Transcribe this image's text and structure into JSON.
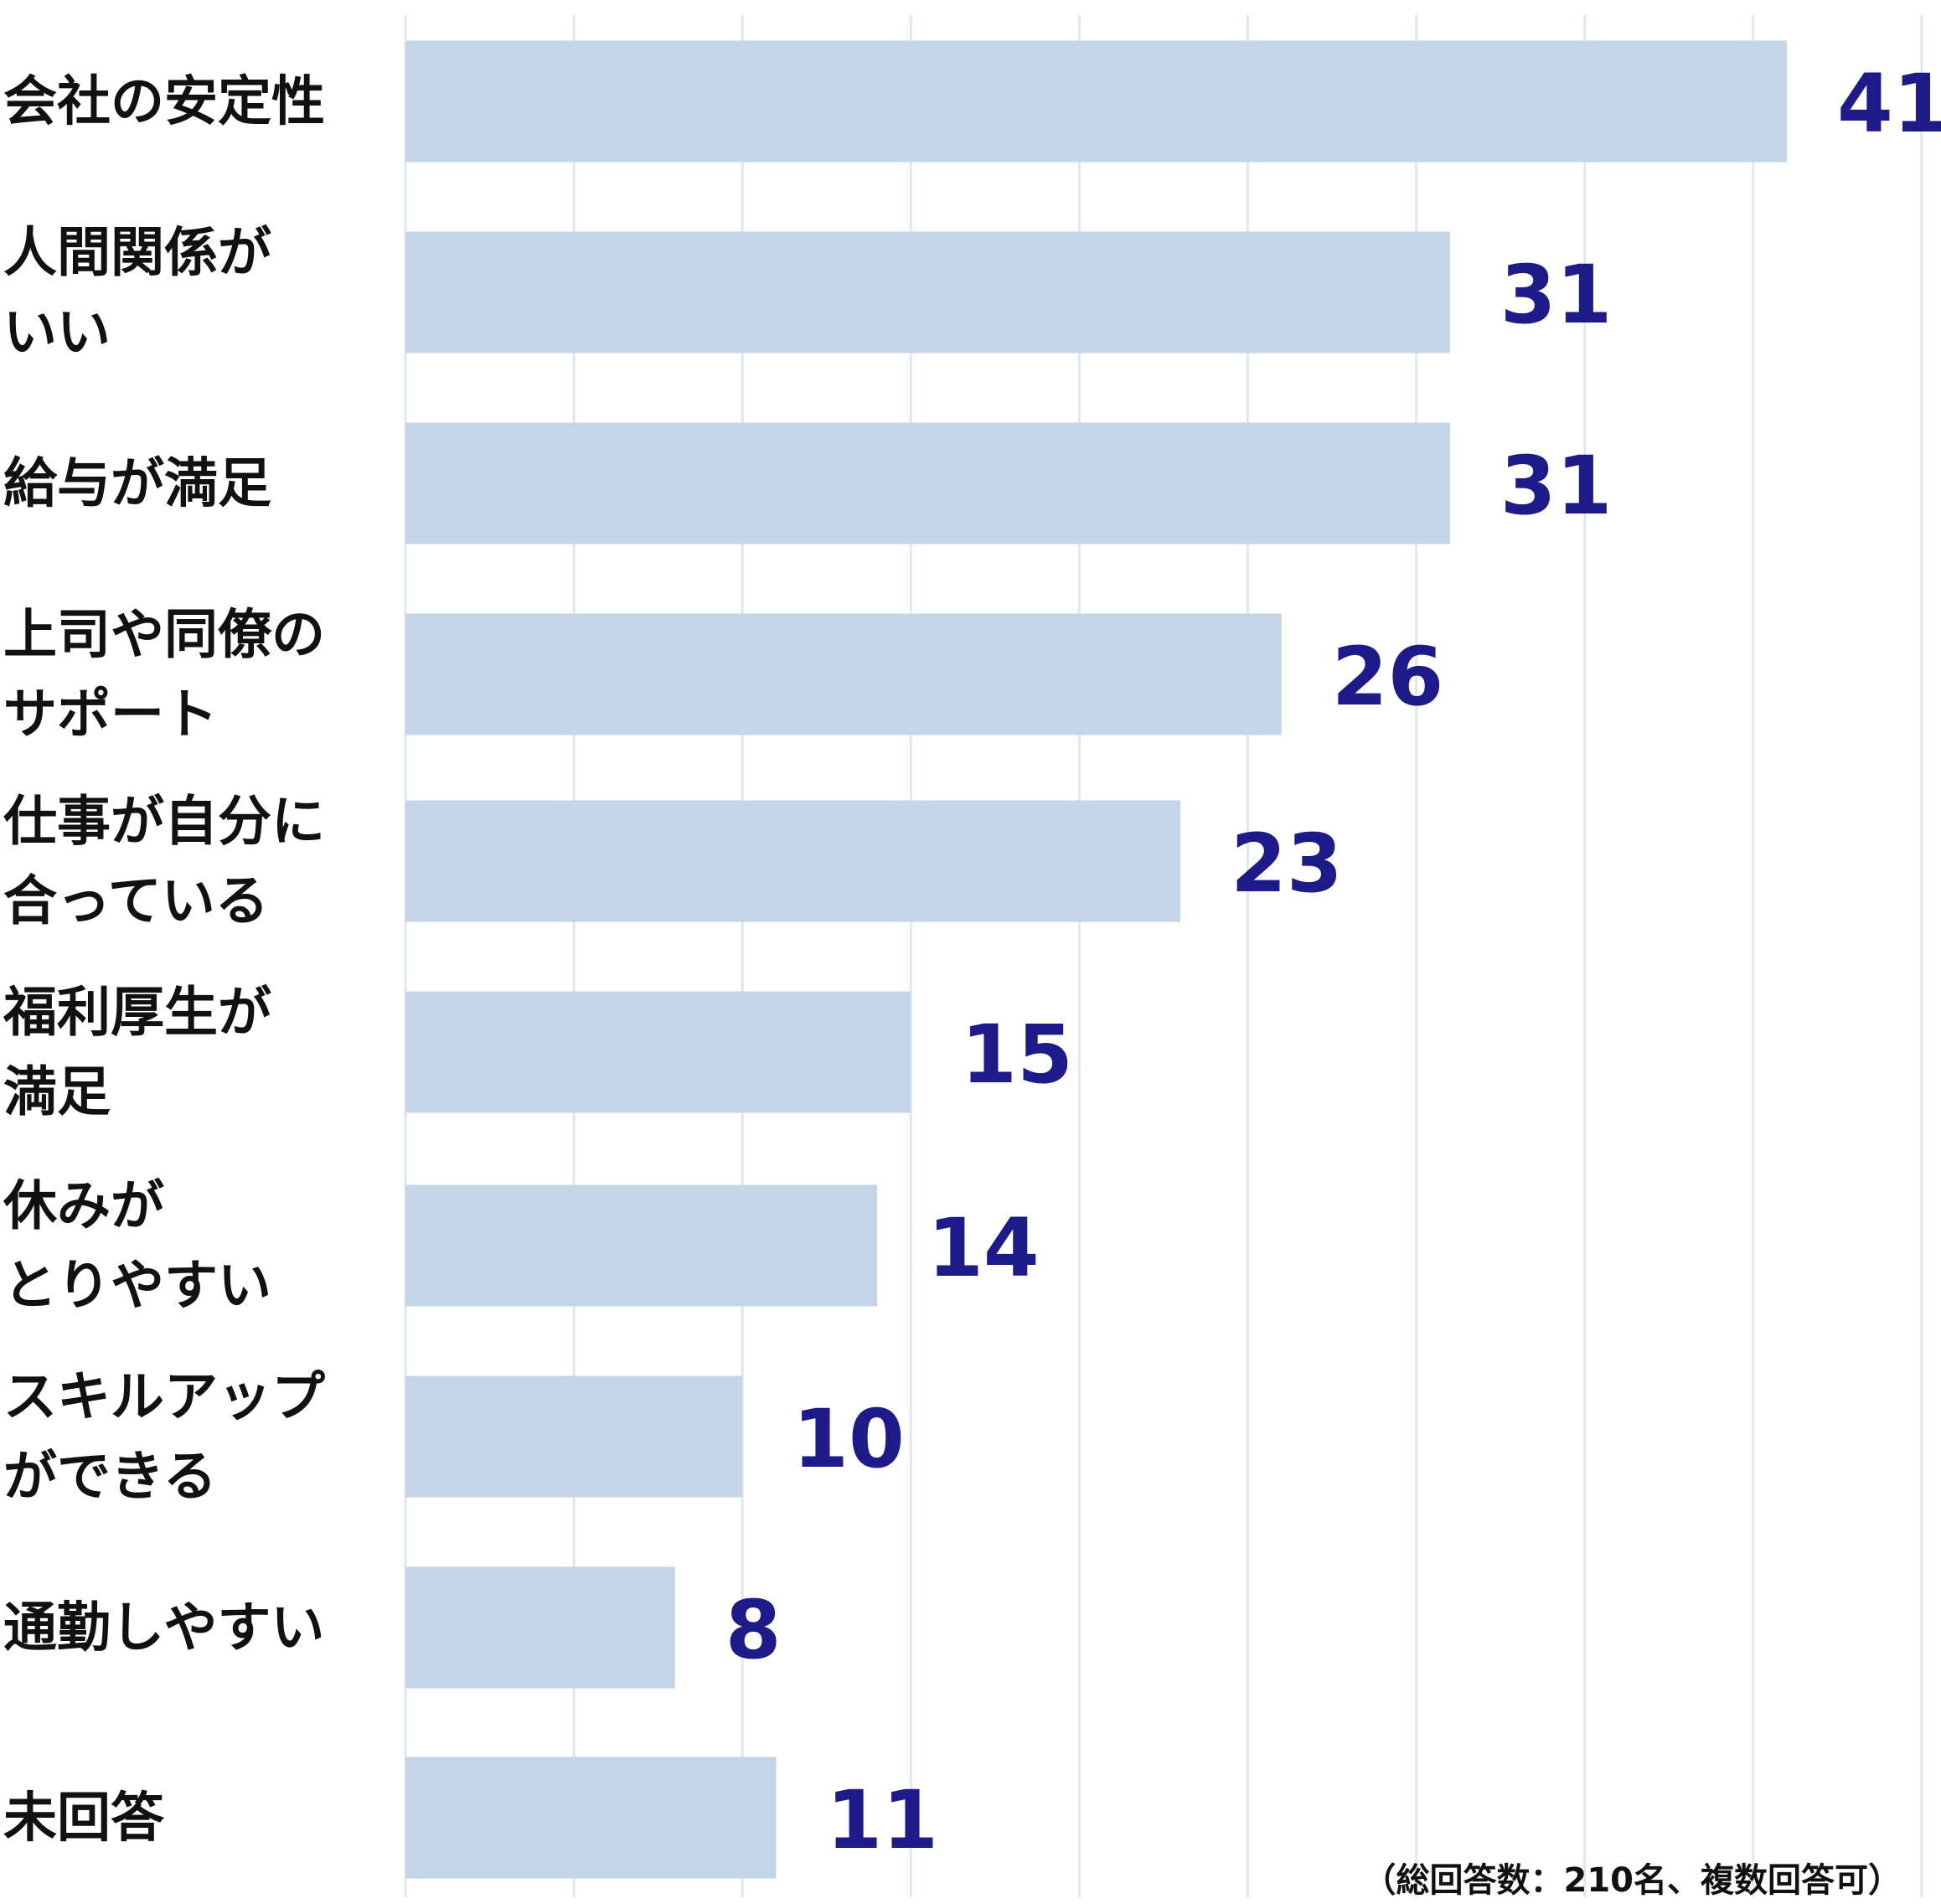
{
  "chart_data": {
    "type": "bar",
    "orientation": "horizontal",
    "categories": [
      [
        "会社の安定性"
      ],
      [
        "人間関係が",
        "いい"
      ],
      [
        "給与が満足"
      ],
      [
        "上司や同僚の",
        "サポート"
      ],
      [
        "仕事が自分に",
        "合っている"
      ],
      [
        "福利厚生が",
        "満足"
      ],
      [
        "休みが",
        "とりやすい"
      ],
      [
        "スキルアップ",
        "ができる"
      ],
      [
        "通勤しやすい"
      ],
      [
        "未回答"
      ]
    ],
    "values": [
      41,
      31,
      31,
      26,
      23,
      15,
      14,
      10,
      8,
      11
    ],
    "xlim": [
      0,
      45
    ],
    "grid": true,
    "colors": {
      "bar": "#c5d5e8",
      "value_text": "#1d1a8a",
      "grid": "#dfe7f1",
      "label_text": "#111111"
    },
    "annotation": "（総回答数：210名、複数回答可）"
  }
}
